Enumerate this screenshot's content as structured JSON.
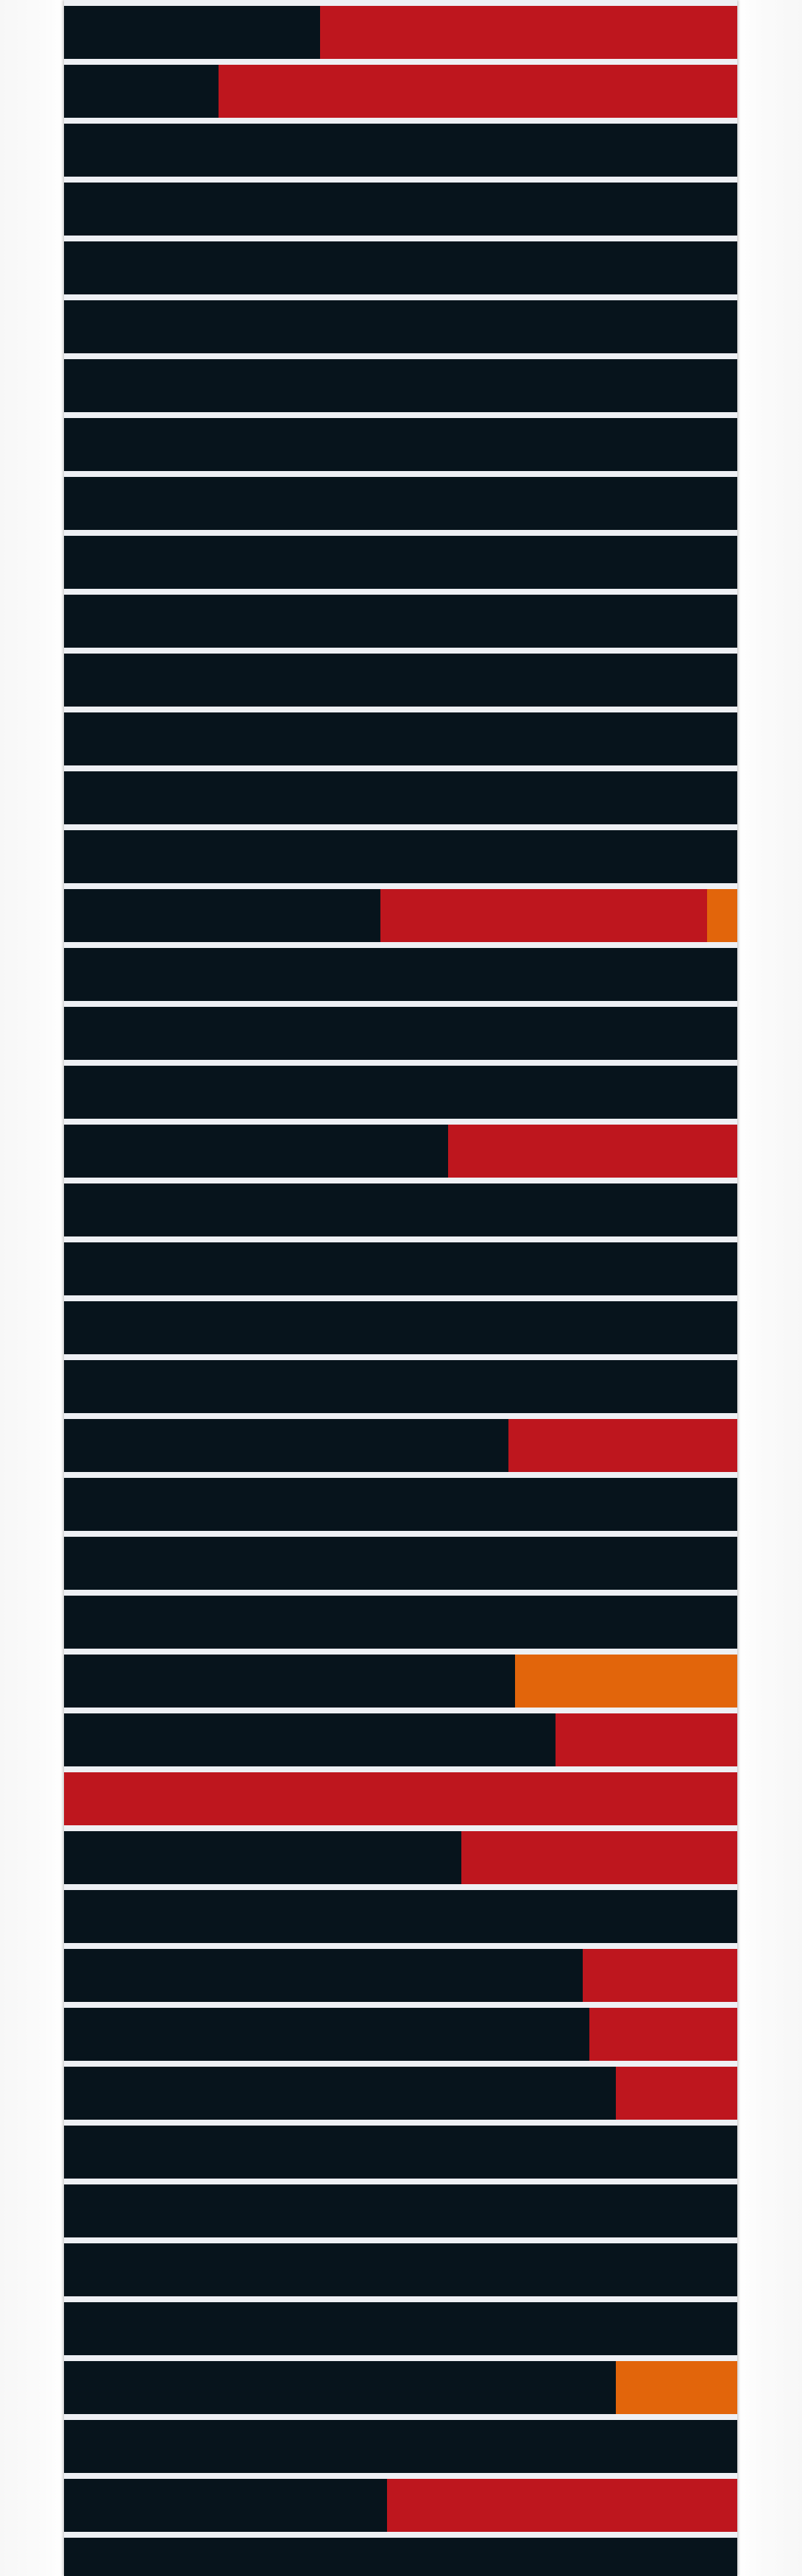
{
  "colors": {
    "ok": "#07141c",
    "fail": "#be161e",
    "warn": "#e2650b",
    "separator": "#eef0f4"
  },
  "status_rows": [
    [
      {
        "status": "ok",
        "fraction": 0.38
      },
      {
        "status": "fail",
        "fraction": 0.62
      }
    ],
    [
      {
        "status": "ok",
        "fraction": 0.23
      },
      {
        "status": "fail",
        "fraction": 0.77
      }
    ],
    [
      {
        "status": "ok",
        "fraction": 1
      }
    ],
    [
      {
        "status": "ok",
        "fraction": 1
      }
    ],
    [
      {
        "status": "ok",
        "fraction": 1
      }
    ],
    [
      {
        "status": "ok",
        "fraction": 1
      }
    ],
    [
      {
        "status": "ok",
        "fraction": 1
      }
    ],
    [
      {
        "status": "ok",
        "fraction": 1
      }
    ],
    [
      {
        "status": "ok",
        "fraction": 1
      }
    ],
    [
      {
        "status": "ok",
        "fraction": 1
      }
    ],
    [
      {
        "status": "ok",
        "fraction": 1
      }
    ],
    [
      {
        "status": "ok",
        "fraction": 1
      }
    ],
    [
      {
        "status": "ok",
        "fraction": 1
      }
    ],
    [
      {
        "status": "ok",
        "fraction": 1
      }
    ],
    [
      {
        "status": "ok",
        "fraction": 1
      }
    ],
    [
      {
        "status": "ok",
        "fraction": 0.47
      },
      {
        "status": "fail",
        "fraction": 0.485
      },
      {
        "status": "warn",
        "fraction": 0.045
      }
    ],
    [
      {
        "status": "ok",
        "fraction": 1
      }
    ],
    [
      {
        "status": "ok",
        "fraction": 1
      }
    ],
    [
      {
        "status": "ok",
        "fraction": 1
      }
    ],
    [
      {
        "status": "ok",
        "fraction": 0.57
      },
      {
        "status": "fail",
        "fraction": 0.43
      }
    ],
    [
      {
        "status": "ok",
        "fraction": 1
      }
    ],
    [
      {
        "status": "ok",
        "fraction": 1
      }
    ],
    [
      {
        "status": "ok",
        "fraction": 1
      }
    ],
    [
      {
        "status": "ok",
        "fraction": 1
      }
    ],
    [
      {
        "status": "ok",
        "fraction": 0.66
      },
      {
        "status": "fail",
        "fraction": 0.34
      }
    ],
    [
      {
        "status": "ok",
        "fraction": 1
      }
    ],
    [
      {
        "status": "ok",
        "fraction": 1
      }
    ],
    [
      {
        "status": "ok",
        "fraction": 1
      }
    ],
    [
      {
        "status": "ok",
        "fraction": 0.67
      },
      {
        "status": "warn",
        "fraction": 0.33
      }
    ],
    [
      {
        "status": "ok",
        "fraction": 0.73
      },
      {
        "status": "fail",
        "fraction": 0.27
      }
    ],
    [
      {
        "status": "fail",
        "fraction": 1
      }
    ],
    [
      {
        "status": "ok",
        "fraction": 0.59
      },
      {
        "status": "fail",
        "fraction": 0.41
      }
    ],
    [
      {
        "status": "ok",
        "fraction": 1
      }
    ],
    [
      {
        "status": "ok",
        "fraction": 0.77
      },
      {
        "status": "fail",
        "fraction": 0.23
      }
    ],
    [
      {
        "status": "ok",
        "fraction": 0.78
      },
      {
        "status": "fail",
        "fraction": 0.22
      }
    ],
    [
      {
        "status": "ok",
        "fraction": 0.82
      },
      {
        "status": "fail",
        "fraction": 0.18
      }
    ],
    [
      {
        "status": "ok",
        "fraction": 1
      }
    ],
    [
      {
        "status": "ok",
        "fraction": 1
      }
    ],
    [
      {
        "status": "ok",
        "fraction": 1
      }
    ],
    [
      {
        "status": "ok",
        "fraction": 1
      }
    ],
    [
      {
        "status": "ok",
        "fraction": 0.82
      },
      {
        "status": "warn",
        "fraction": 0.18
      }
    ],
    [
      {
        "status": "ok",
        "fraction": 1
      }
    ],
    [
      {
        "status": "ok",
        "fraction": 0.48
      },
      {
        "status": "fail",
        "fraction": 0.52
      }
    ],
    [
      {
        "status": "ok",
        "fraction": 1
      }
    ]
  ]
}
